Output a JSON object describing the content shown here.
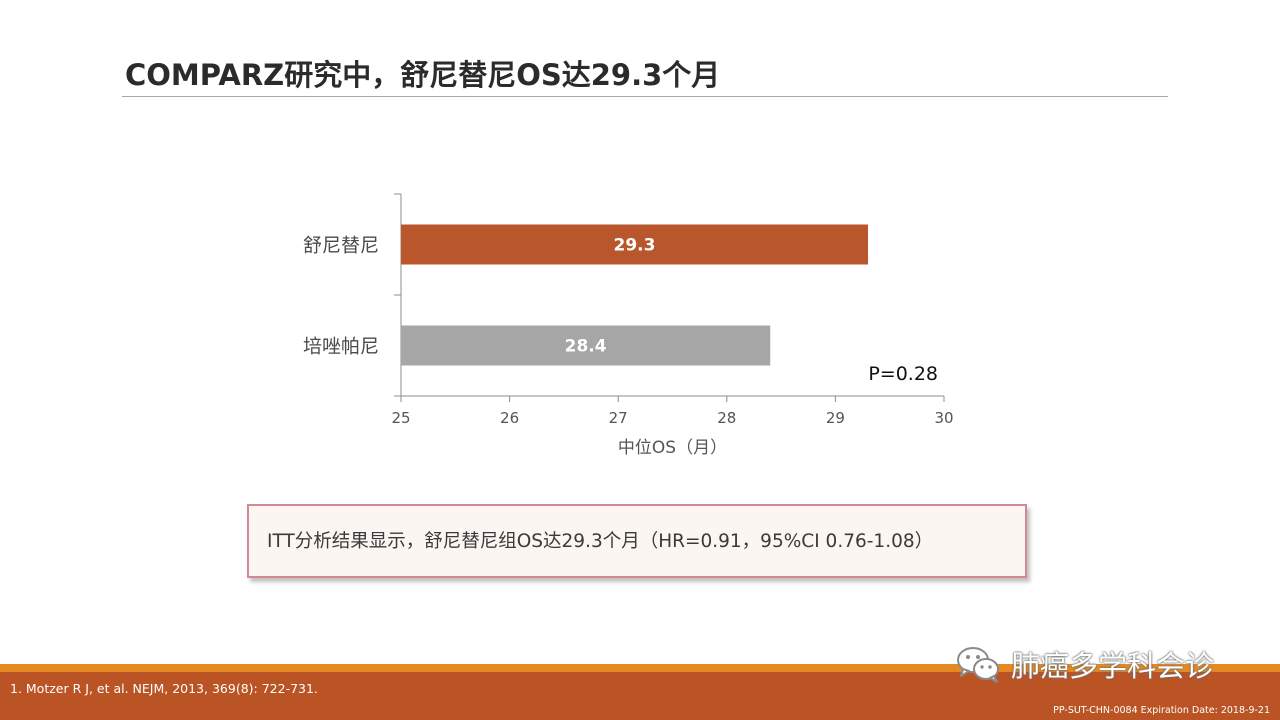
{
  "slide": {
    "title": "COMPARZ研究中，舒尼替尼OS达29.3个月",
    "result_text": "ITT分析结果显示，舒尼替尼组OS达29.3个月（HR=0.91，95%CI 0.76-1.08）",
    "reference": "1. Motzer R J, et al. NEJM, 2013, 369(8): 722-731.",
    "doc_code": "PP-SUT-CHN-0084 Expiration Date: 2018-9-21",
    "watermark_text": "肺癌多学科会诊",
    "watermark_icon": "wechat-icon"
  },
  "colors": {
    "sunitinib_bar": "#b9562b",
    "pazopanib_bar": "#a6a6a6",
    "footer_band": "#ba5425",
    "footer_accent": "#e58a23",
    "box_border": "#d18a94"
  },
  "chart_data": {
    "type": "bar",
    "orientation": "horizontal",
    "categories": [
      "舒尼替尼",
      "培唑帕尼"
    ],
    "values": [
      29.3,
      28.4
    ],
    "value_labels": [
      "29.3",
      "28.4"
    ],
    "xlabel": "中位OS（月）",
    "xlim": [
      25,
      30
    ],
    "xticks": [
      25,
      26,
      27,
      28,
      29,
      30
    ],
    "annotation": "P=0.28",
    "grid": false,
    "legend": "none"
  }
}
